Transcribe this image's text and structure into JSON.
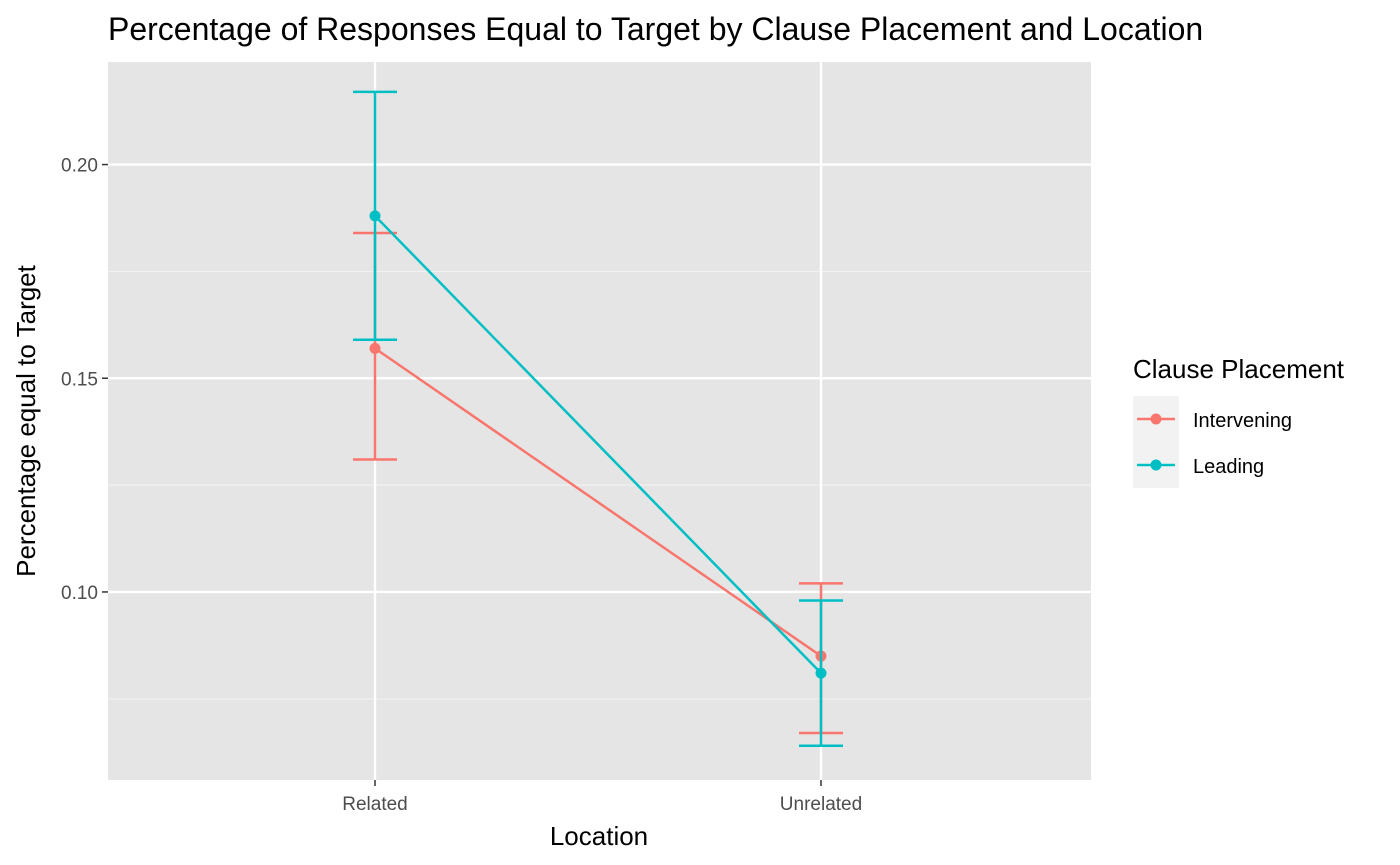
{
  "chart_data": {
    "type": "line",
    "title": "Percentage of Responses Equal to Target by Clause Placement and Location",
    "xlabel": "Location",
    "ylabel": "Percentage equal to Target",
    "categories": [
      "Related",
      "Unrelated"
    ],
    "ylim": [
      0.056,
      0.224
    ],
    "yticks": [
      0.1,
      0.15,
      0.2
    ],
    "ytick_labels": [
      "0.10",
      "0.15",
      "0.20"
    ],
    "grid": true,
    "legend": {
      "title": "Clause Placement",
      "position": "right"
    },
    "series": [
      {
        "name": "Intervening",
        "color": "#F8766D",
        "values": [
          0.157,
          0.085
        ],
        "lower": [
          0.131,
          0.067
        ],
        "upper": [
          0.184,
          0.102
        ]
      },
      {
        "name": "Leading",
        "color": "#00BFC4",
        "values": [
          0.188,
          0.081
        ],
        "lower": [
          0.159,
          0.064
        ],
        "upper": [
          0.217,
          0.098
        ]
      }
    ]
  }
}
